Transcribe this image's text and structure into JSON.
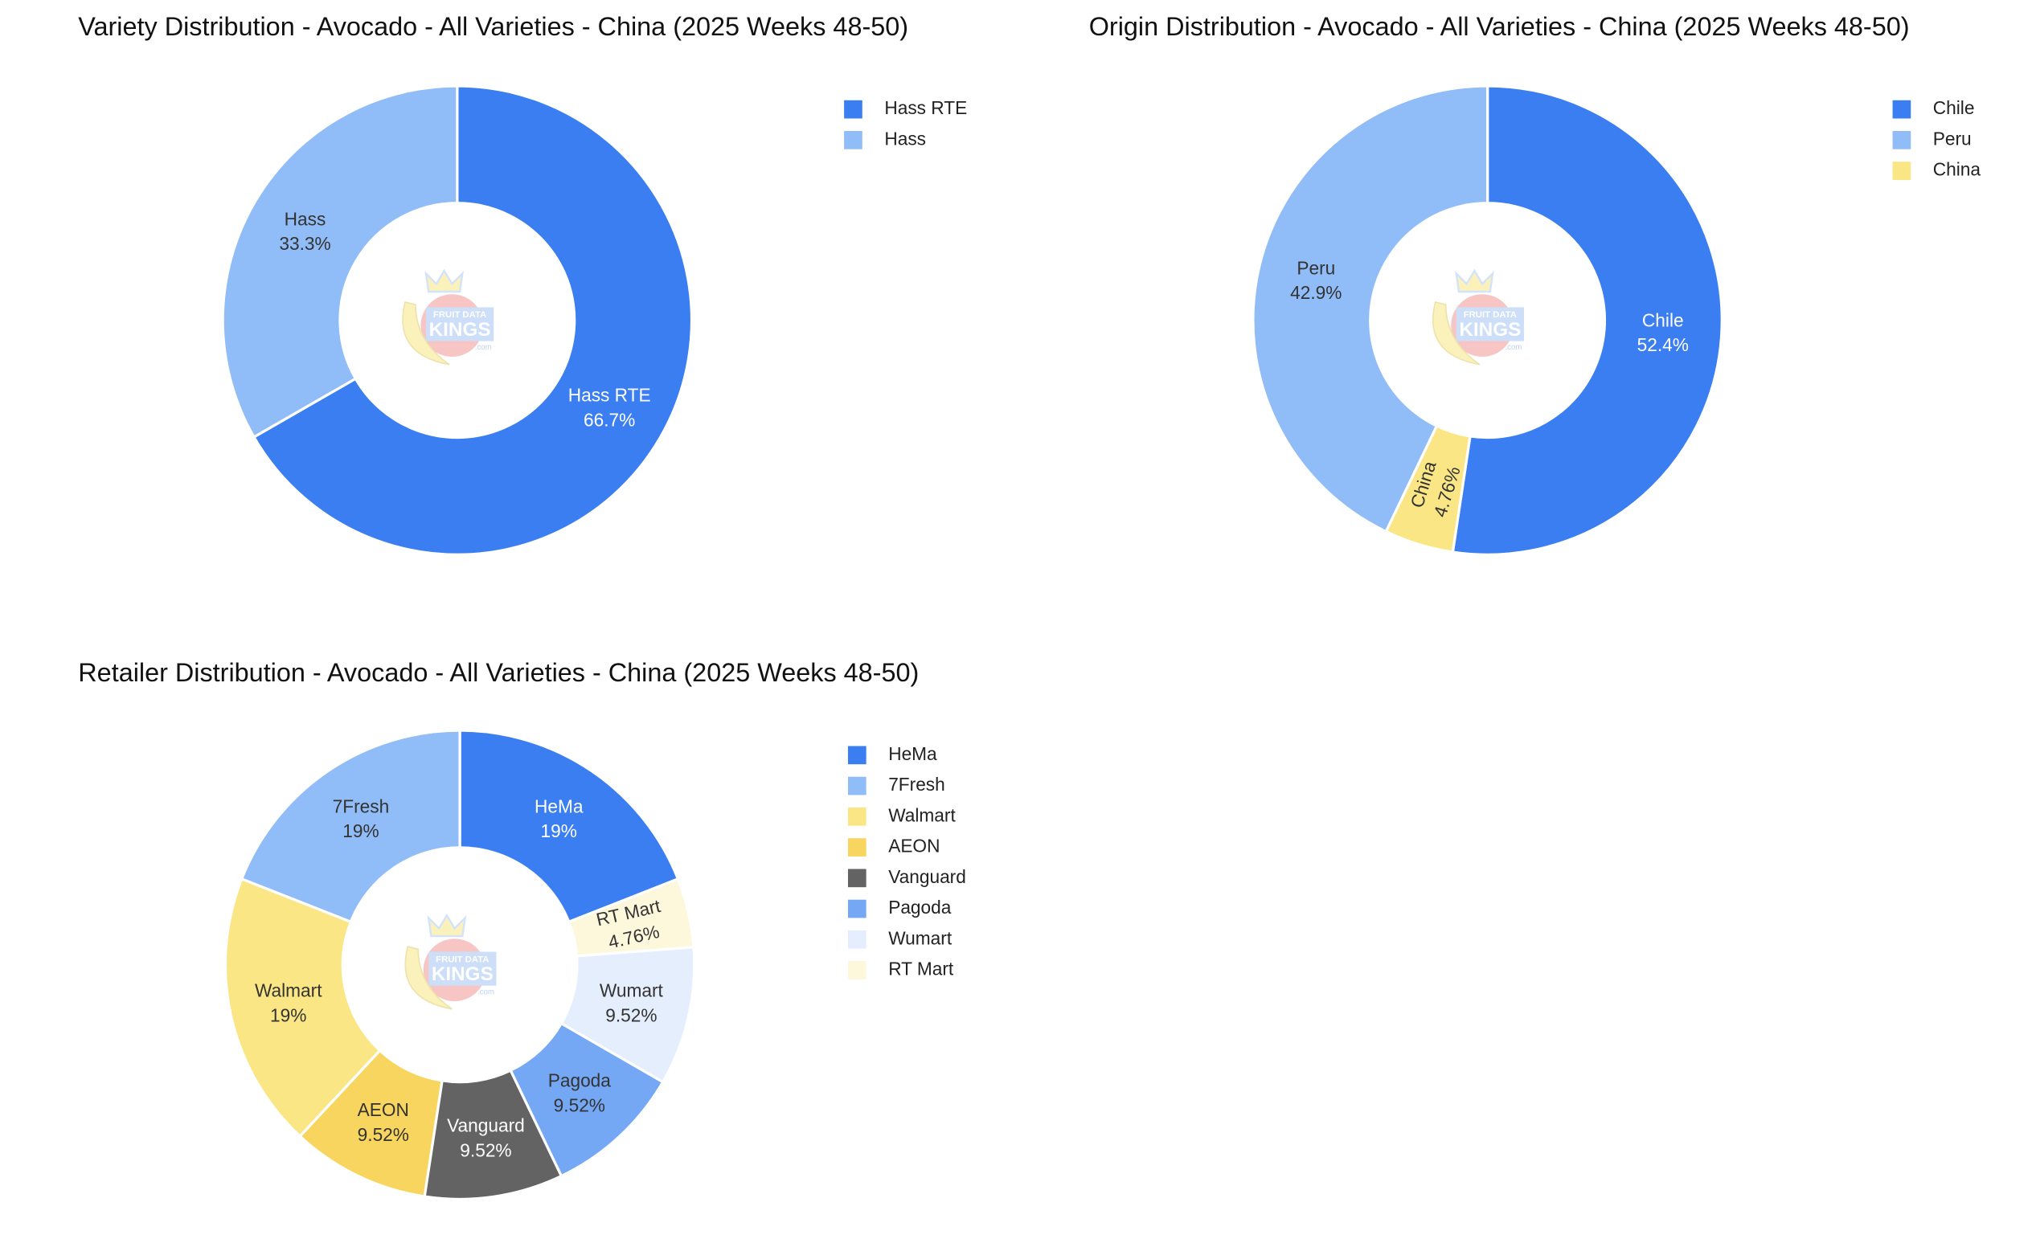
{
  "chart_data": [
    {
      "type": "pie",
      "title": "Variety Distribution - Avocado - All Varieties - China (2025 Weeks 48-50)",
      "categories": [
        "Hass RTE",
        "Hass"
      ],
      "values": [
        66.7,
        33.3
      ],
      "value_labels": [
        "66.7%",
        "33.3%"
      ],
      "colors": [
        "#3a7ef2",
        "#90bcf8"
      ]
    },
    {
      "type": "pie",
      "title": "Origin Distribution - Avocado - All Varieties - China (2025 Weeks 48-50)",
      "categories": [
        "Chile",
        "Peru",
        "China"
      ],
      "values": [
        52.4,
        42.9,
        4.76
      ],
      "value_labels": [
        "52.4%",
        "42.9%",
        "4.76%"
      ],
      "colors": [
        "#3a7ef2",
        "#90bcf8",
        "#fae685"
      ]
    },
    {
      "type": "pie",
      "title": "Retailer Distribution - Avocado - All Varieties - China (2025 Weeks 48-50)",
      "categories": [
        "HeMa",
        "7Fresh",
        "Walmart",
        "AEON",
        "Vanguard",
        "Pagoda",
        "Wumart",
        "RT Mart"
      ],
      "values": [
        19,
        19,
        19,
        9.52,
        9.52,
        9.52,
        9.52,
        4.76
      ],
      "value_labels": [
        "19%",
        "19%",
        "19%",
        "9.52%",
        "9.52%",
        "9.52%",
        "9.52%",
        "4.76%"
      ],
      "colors": [
        "#3a7ef2",
        "#90bcf8",
        "#fae685",
        "#f7d55f",
        "#636363",
        "#74a8f5",
        "#e4eefc",
        "#fdf7dc"
      ]
    }
  ],
  "watermark": {
    "line1": "FRUIT DATA",
    "line2": "KINGS",
    "line3": ".com"
  }
}
